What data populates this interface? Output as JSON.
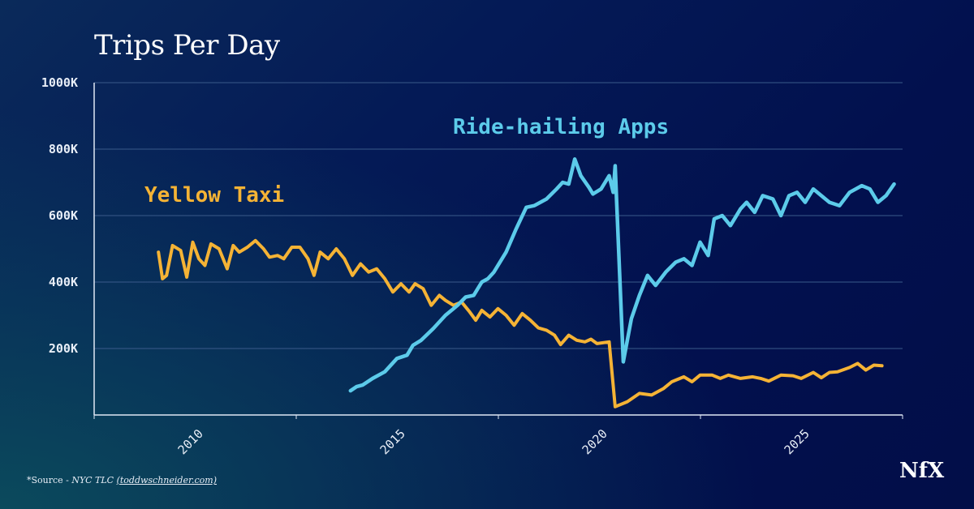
{
  "title": "Trips Per Day",
  "source": {
    "prefix": "*Source - ",
    "org": "NYC TLC",
    "link": "(toddwschneider.com)"
  },
  "logo": "NfX",
  "colors": {
    "yellow_taxi": "#f5b335",
    "ride_hailing": "#5ccbea",
    "gridline": "#3a5a8a",
    "axis": "#dfe8f5"
  },
  "chart_data": {
    "type": "line",
    "title": "Trips Per Day",
    "xlabel": "",
    "ylabel": "",
    "ylim": [
      0,
      1000
    ],
    "y_unit": "K",
    "y_ticks": [
      "200K",
      "400K",
      "600K",
      "800K",
      "1000K"
    ],
    "x_ticks": [
      "2010",
      "2015",
      "2020",
      "2025"
    ],
    "grid": "horizontal",
    "legend": "inline labels",
    "series": [
      {
        "name": "Yellow Taxi",
        "points": [
          [
            2009.0,
            490
          ],
          [
            2009.1,
            410
          ],
          [
            2009.2,
            420
          ],
          [
            2009.35,
            510
          ],
          [
            2009.55,
            495
          ],
          [
            2009.7,
            415
          ],
          [
            2009.85,
            520
          ],
          [
            2010.0,
            470
          ],
          [
            2010.15,
            450
          ],
          [
            2010.3,
            515
          ],
          [
            2010.5,
            500
          ],
          [
            2010.7,
            440
          ],
          [
            2010.85,
            510
          ],
          [
            2011.0,
            490
          ],
          [
            2011.2,
            505
          ],
          [
            2011.4,
            525
          ],
          [
            2011.6,
            500
          ],
          [
            2011.75,
            475
          ],
          [
            2011.95,
            480
          ],
          [
            2012.1,
            470
          ],
          [
            2012.3,
            505
          ],
          [
            2012.5,
            505
          ],
          [
            2012.7,
            470
          ],
          [
            2012.85,
            420
          ],
          [
            2013.0,
            490
          ],
          [
            2013.2,
            470
          ],
          [
            2013.4,
            500
          ],
          [
            2013.6,
            470
          ],
          [
            2013.8,
            420
          ],
          [
            2014.0,
            455
          ],
          [
            2014.2,
            430
          ],
          [
            2014.4,
            440
          ],
          [
            2014.6,
            410
          ],
          [
            2014.8,
            370
          ],
          [
            2015.0,
            395
          ],
          [
            2015.2,
            370
          ],
          [
            2015.35,
            395
          ],
          [
            2015.55,
            380
          ],
          [
            2015.75,
            330
          ],
          [
            2015.95,
            360
          ],
          [
            2016.1,
            345
          ],
          [
            2016.3,
            330
          ],
          [
            2016.5,
            340
          ],
          [
            2016.7,
            310
          ],
          [
            2016.85,
            285
          ],
          [
            2017.0,
            315
          ],
          [
            2017.2,
            295
          ],
          [
            2017.4,
            320
          ],
          [
            2017.6,
            300
          ],
          [
            2017.8,
            270
          ],
          [
            2018.0,
            305
          ],
          [
            2018.2,
            285
          ],
          [
            2018.4,
            262
          ],
          [
            2018.6,
            255
          ],
          [
            2018.8,
            240
          ],
          [
            2018.95,
            212
          ],
          [
            2019.15,
            240
          ],
          [
            2019.35,
            225
          ],
          [
            2019.55,
            220
          ],
          [
            2019.7,
            228
          ],
          [
            2019.85,
            215
          ],
          [
            2020.15,
            220
          ],
          [
            2020.3,
            25
          ],
          [
            2020.6,
            40
          ],
          [
            2020.9,
            65
          ],
          [
            2021.2,
            60
          ],
          [
            2021.5,
            80
          ],
          [
            2021.7,
            100
          ],
          [
            2022.0,
            115
          ],
          [
            2022.2,
            100
          ],
          [
            2022.4,
            120
          ],
          [
            2022.7,
            120
          ],
          [
            2022.9,
            110
          ],
          [
            2023.1,
            120
          ],
          [
            2023.4,
            110
          ],
          [
            2023.7,
            115
          ],
          [
            2023.9,
            110
          ],
          [
            2024.1,
            102
          ],
          [
            2024.4,
            120
          ],
          [
            2024.7,
            118
          ],
          [
            2024.9,
            110
          ],
          [
            2025.2,
            128
          ],
          [
            2025.4,
            112
          ],
          [
            2025.6,
            128
          ],
          [
            2025.8,
            130
          ],
          [
            2026.1,
            143
          ],
          [
            2026.3,
            155
          ],
          [
            2026.5,
            135
          ],
          [
            2026.7,
            150
          ],
          [
            2026.9,
            148
          ]
        ]
      },
      {
        "name": "Ride-hailing Apps",
        "points": [
          [
            2013.75,
            73
          ],
          [
            2013.9,
            85
          ],
          [
            2014.05,
            90
          ],
          [
            2014.3,
            110
          ],
          [
            2014.6,
            130
          ],
          [
            2014.9,
            170
          ],
          [
            2015.15,
            180
          ],
          [
            2015.3,
            210
          ],
          [
            2015.5,
            225
          ],
          [
            2015.8,
            260
          ],
          [
            2016.1,
            300
          ],
          [
            2016.4,
            330
          ],
          [
            2016.6,
            355
          ],
          [
            2016.8,
            360
          ],
          [
            2017.0,
            400
          ],
          [
            2017.15,
            410
          ],
          [
            2017.3,
            430
          ],
          [
            2017.6,
            490
          ],
          [
            2017.85,
            560
          ],
          [
            2018.1,
            625
          ],
          [
            2018.3,
            630
          ],
          [
            2018.6,
            650
          ],
          [
            2018.85,
            680
          ],
          [
            2019.0,
            700
          ],
          [
            2019.15,
            695
          ],
          [
            2019.3,
            770
          ],
          [
            2019.45,
            720
          ],
          [
            2019.65,
            685
          ],
          [
            2019.75,
            665
          ],
          [
            2019.95,
            680
          ],
          [
            2020.05,
            700
          ],
          [
            2020.15,
            720
          ],
          [
            2020.25,
            670
          ],
          [
            2020.3,
            750
          ],
          [
            2020.5,
            160
          ],
          [
            2020.7,
            290
          ],
          [
            2020.9,
            360
          ],
          [
            2021.1,
            420
          ],
          [
            2021.3,
            390
          ],
          [
            2021.55,
            430
          ],
          [
            2021.8,
            460
          ],
          [
            2022.0,
            470
          ],
          [
            2022.2,
            450
          ],
          [
            2022.4,
            520
          ],
          [
            2022.6,
            480
          ],
          [
            2022.75,
            590
          ],
          [
            2022.95,
            600
          ],
          [
            2023.15,
            570
          ],
          [
            2023.4,
            620
          ],
          [
            2023.55,
            640
          ],
          [
            2023.75,
            610
          ],
          [
            2023.95,
            660
          ],
          [
            2024.2,
            650
          ],
          [
            2024.4,
            600
          ],
          [
            2024.6,
            660
          ],
          [
            2024.8,
            670
          ],
          [
            2025.0,
            640
          ],
          [
            2025.2,
            680
          ],
          [
            2025.4,
            660
          ],
          [
            2025.6,
            640
          ],
          [
            2025.85,
            630
          ],
          [
            2026.1,
            670
          ],
          [
            2026.4,
            690
          ],
          [
            2026.6,
            680
          ],
          [
            2026.8,
            640
          ],
          [
            2027.0,
            660
          ],
          [
            2027.2,
            695
          ]
        ]
      }
    ]
  }
}
